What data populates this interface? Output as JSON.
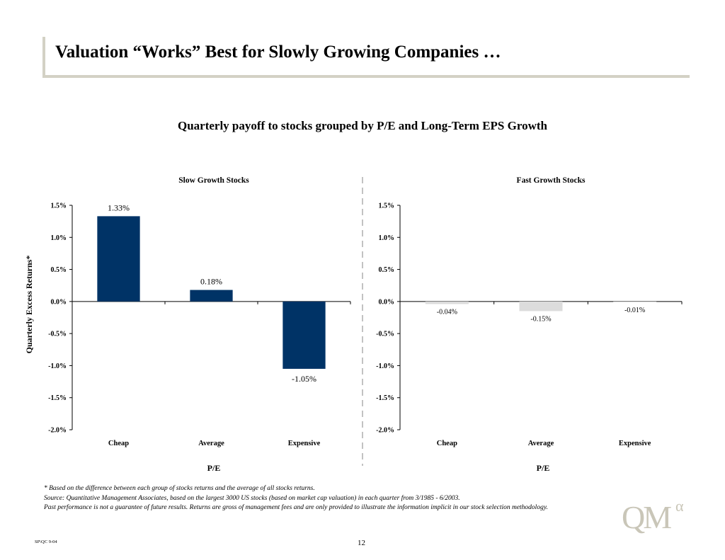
{
  "slide": {
    "title": "Valuation “Works” Best for Slowly Growing Companies …",
    "subtitle": "Quarterly payoff to stocks grouped by P/E and Long-Term EPS Growth",
    "notes": [
      "* Based on the difference between each group of stocks returns and the average of all stocks returns.",
      "Source: Quantitative Management Associates, based on the largest 3000 US stocks (based on market cap valuation) in each quarter from 3/1985 - 6/2003.",
      "Past performance is not a guarantee of future results. Returns are gross of management fees and are only provided to illustrate the information implicit in our stock selection methodology."
    ],
    "footer_code": "SP\\QC 9-04",
    "page_number": "12",
    "logo_text": "QM",
    "logo_superscript": "α"
  },
  "chart_data": [
    {
      "type": "bar",
      "title": "Slow Growth Stocks",
      "xlabel": "P/E",
      "ylabel": "Quarterly Excess Returns*",
      "categories": [
        "Cheap",
        "Average",
        "Expensive"
      ],
      "values": [
        1.33,
        0.18,
        -1.05
      ],
      "data_labels": [
        "1.33%",
        "0.18%",
        "-1.05%"
      ],
      "ylim": [
        -2.0,
        1.5
      ],
      "yticks": [
        1.5,
        1.0,
        0.5,
        0.0,
        -0.5,
        -1.0,
        -1.5,
        -2.0
      ],
      "ytick_labels": [
        "1.5%",
        "1.0%",
        "0.5%",
        "0.0%",
        "-0.5%",
        "-1.0%",
        "-1.5%",
        "-2.0%"
      ],
      "bar_color": "#003366",
      "grid": false
    },
    {
      "type": "bar",
      "title": "Fast Growth Stocks",
      "xlabel": "P/E",
      "ylabel": "",
      "categories": [
        "Cheap",
        "Average",
        "Expensive"
      ],
      "values": [
        -0.04,
        -0.15,
        -0.01
      ],
      "data_labels": [
        "-0.04%",
        "-0.15%",
        "-0.01%"
      ],
      "ylim": [
        -2.0,
        1.5
      ],
      "yticks": [
        1.5,
        1.0,
        0.5,
        0.0,
        -0.5,
        -1.0,
        -1.5,
        -2.0
      ],
      "ytick_labels": [
        "1.5%",
        "1.0%",
        "0.5%",
        "0.0%",
        "-0.5%",
        "-1.0%",
        "-1.5%",
        "-2.0%"
      ],
      "bar_color": "#dcdcdc",
      "grid": false
    }
  ]
}
